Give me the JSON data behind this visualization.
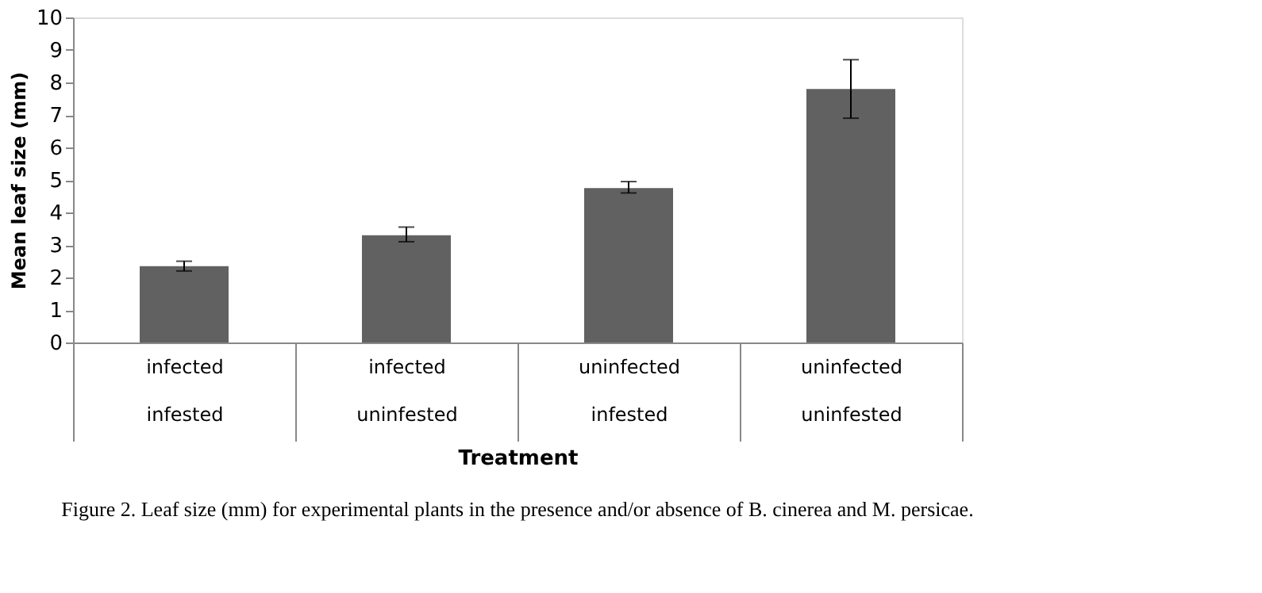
{
  "chart_data": {
    "type": "bar",
    "categories": [
      "infected\ninfested",
      "infected\nuninfested",
      "uninfected\ninfested",
      "uninfected\nuninfested"
    ],
    "values": [
      2.35,
      3.3,
      4.75,
      7.8
    ],
    "errors": [
      [
        2.2,
        2.5
      ],
      [
        3.1,
        3.55
      ],
      [
        4.6,
        4.95
      ],
      [
        6.9,
        8.7
      ]
    ],
    "color": "#616161",
    "xlabel": "Treatment",
    "ylabel": "Mean leaf size (mm)",
    "ylim": [
      0,
      10
    ],
    "yticks": [
      0,
      1,
      2,
      3,
      4,
      5,
      6,
      7,
      8,
      9,
      10
    ],
    "grid": false,
    "annotations": [
      "Figure 2. Leaf size (mm) for experimental plants in the presence and/or absence of B. cinerea and M. persicae."
    ]
  }
}
